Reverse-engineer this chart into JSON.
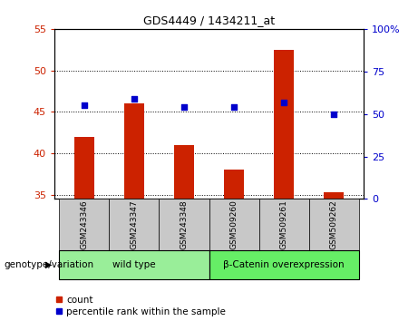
{
  "title": "GDS4449 / 1434211_at",
  "categories": [
    "GSM243346",
    "GSM243347",
    "GSM243348",
    "GSM509260",
    "GSM509261",
    "GSM509262"
  ],
  "bar_values": [
    42.0,
    46.0,
    41.0,
    38.0,
    52.5,
    35.3
  ],
  "scatter_percentile": [
    55,
    59,
    54,
    54,
    57,
    50
  ],
  "ylim_left": [
    34.5,
    55
  ],
  "ylim_right": [
    0,
    100
  ],
  "yticks_left": [
    35,
    40,
    45,
    50,
    55
  ],
  "yticks_right": [
    0,
    25,
    50,
    75,
    100
  ],
  "bar_color": "#cc2200",
  "scatter_color": "#0000cc",
  "bar_width": 0.4,
  "groups": [
    {
      "label": "wild type",
      "indices": [
        0,
        1,
        2
      ],
      "color": "#99ee99"
    },
    {
      "label": "β-Catenin overexpression",
      "indices": [
        3,
        4,
        5
      ],
      "color": "#66ee66"
    }
  ],
  "group_row_label": "genotype/variation",
  "legend_count_label": "count",
  "legend_percentile_label": "percentile rank within the sample",
  "tick_label_color_left": "#cc2200",
  "tick_label_color_right": "#0000cc",
  "background_color": "#ffffff",
  "plot_bg_color": "#ffffff",
  "sample_box_color": "#c8c8c8"
}
